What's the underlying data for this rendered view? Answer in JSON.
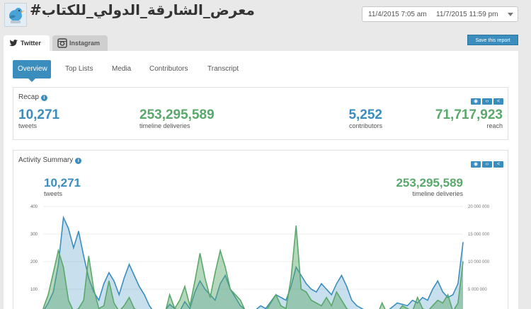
{
  "header": {
    "title": "#معرض_الشارقة_الدولي_للكتاب",
    "date_start": "11/4/2015 7:05 am",
    "date_end": "11/7/2015 11:59 pm",
    "save_label": "Save this report"
  },
  "platform_tabs": [
    {
      "label": "Twitter",
      "icon": "twitter-bird-icon"
    },
    {
      "label": "Instagram",
      "icon": "instagram-camera-icon"
    }
  ],
  "subtabs": [
    {
      "label": "Overview",
      "active": true
    },
    {
      "label": "Top Lists",
      "active": false
    },
    {
      "label": "Media",
      "active": false
    },
    {
      "label": "Contributors",
      "active": false
    },
    {
      "label": "Transcript",
      "active": false
    }
  ],
  "recap": {
    "title": "Recap",
    "icons": [
      "eye-icon",
      "code-icon",
      "share-icon"
    ],
    "metrics": [
      {
        "value": "10,271",
        "label": "tweets",
        "color": "#3b8dbd"
      },
      {
        "value": "253,295,589",
        "label": "timeline deliveries",
        "color": "#5aa86b"
      },
      {
        "value": "5,252",
        "label": "contributors",
        "color": "#3b8dbd"
      },
      {
        "value": "71,717,923",
        "label": "reach",
        "color": "#5aa86b"
      }
    ]
  },
  "activity": {
    "title": "Activity Summary",
    "icons": [
      "eye-icon",
      "code-icon",
      "share-icon"
    ],
    "tweets_value": "10,271",
    "tweets_label": "tweets",
    "deliveries_value": "253,295,589",
    "deliveries_label": "timeline deliveries",
    "y_left_ticks": [
      "400",
      "300",
      "200",
      "100"
    ],
    "y_right_ticks": [
      "20 000 000",
      "15 000 000",
      "10 000 000",
      "5 000 000"
    ]
  },
  "chart_data": {
    "type": "area",
    "y_left_range": [
      0,
      400
    ],
    "y_right_range": [
      0,
      20000000
    ],
    "series": [
      {
        "name": "tweets",
        "color": "#3b8dbd",
        "axis": "left",
        "values": [
          20,
          50,
          90,
          190,
          360,
          320,
          250,
          310,
          220,
          140,
          90,
          60,
          120,
          160,
          130,
          80,
          140,
          190,
          150,
          110,
          80,
          40,
          15,
          10,
          20,
          45,
          30,
          20,
          55,
          30,
          90,
          130,
          100,
          80,
          60,
          120,
          150,
          100,
          70,
          40,
          25,
          20,
          25,
          40,
          30,
          55,
          80,
          70,
          60,
          110,
          180,
          150,
          120,
          100,
          90,
          120,
          100,
          80,
          120,
          150,
          110,
          60,
          40,
          30,
          20,
          10,
          15,
          25,
          20,
          35,
          50,
          45,
          40,
          60,
          50,
          70,
          60,
          100,
          130,
          90,
          70,
          80,
          120,
          270
        ]
      },
      {
        "name": "timeline deliveries",
        "color": "#5aa86b",
        "axis": "right",
        "values": [
          1500000,
          4000000,
          8000000,
          12000000,
          9000000,
          3000000,
          1000000,
          1500000,
          3000000,
          11000000,
          5000000,
          1500000,
          2000000,
          6500000,
          2500000,
          1000000,
          2000000,
          3500000,
          1500000,
          1000000,
          500000,
          300000,
          400000,
          1000000,
          300000,
          4000000,
          1500000,
          3000000,
          5500000,
          2000000,
          6500000,
          11500000,
          7000000,
          3500000,
          8000000,
          12000000,
          9000000,
          5000000,
          4000000,
          3000000,
          1000000,
          600000,
          800000,
          1200000,
          1000000,
          2500000,
          4000000,
          2000000,
          1500000,
          7000000,
          16500000,
          5000000,
          4500000,
          3000000,
          2500000,
          2000000,
          3500000,
          2000000,
          4500000,
          3000000,
          1500000,
          800000,
          400000,
          200000,
          100000,
          200000,
          300000,
          2500000,
          600000,
          400000,
          800000,
          2000000,
          1500000,
          1000000,
          3500000,
          1500000,
          1000000,
          2000000,
          3000000,
          2500000,
          4000000,
          1000000,
          2500000,
          10000000
        ]
      }
    ]
  }
}
